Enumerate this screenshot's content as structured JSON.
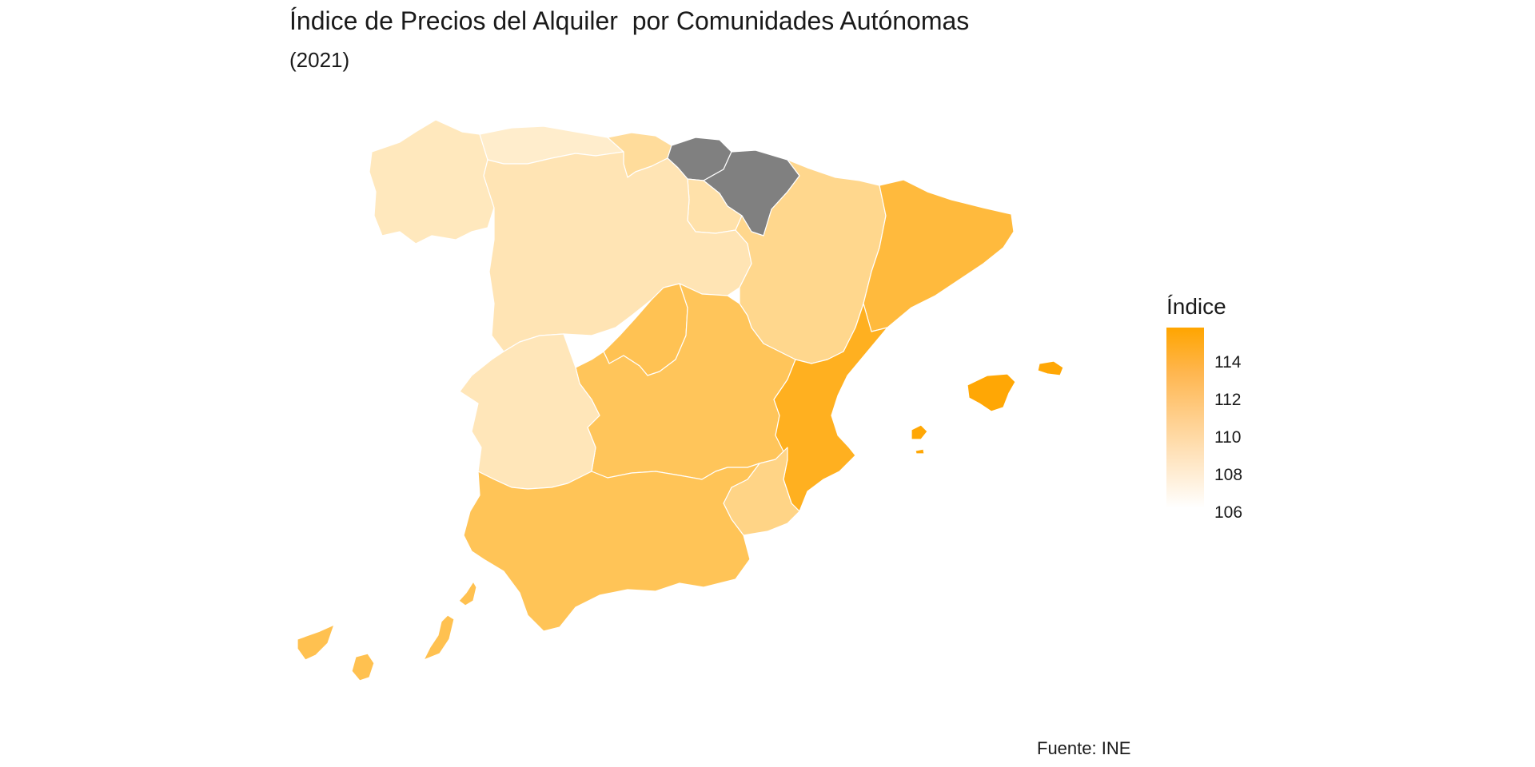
{
  "title": "Índice de Precios del Alquiler  por Comunidades Autónomas",
  "subtitle": "(2021)",
  "caption": "Fuente: INE",
  "legend": {
    "title": "Índice",
    "ticks": [
      "114",
      "112",
      "110",
      "108",
      "106"
    ],
    "low_color": "#ffffff",
    "high_color": "#ffa500",
    "na_color": "#808080"
  },
  "regions": [
    {
      "name": "Galicia",
      "value": 108.2
    },
    {
      "name": "Asturias",
      "value": 107.6
    },
    {
      "name": "Cantabria",
      "value": 109.6
    },
    {
      "name": "País Vasco",
      "value": null
    },
    {
      "name": "Navarra",
      "value": null
    },
    {
      "name": "La Rioja",
      "value": 109.0
    },
    {
      "name": "Castilla y León",
      "value": 108.6
    },
    {
      "name": "Aragón",
      "value": 110.2
    },
    {
      "name": "Cataluña",
      "value": 113.5
    },
    {
      "name": "Comunidad de Madrid",
      "value": 112.6
    },
    {
      "name": "Castilla-La Mancha",
      "value": 112.3
    },
    {
      "name": "Extremadura",
      "value": 108.4
    },
    {
      "name": "Comunitat Valenciana",
      "value": 114.7
    },
    {
      "name": "Región de Murcia",
      "value": 110.5
    },
    {
      "name": "Andalucía",
      "value": 112.4
    },
    {
      "name": "Illes Balears",
      "value": 115.8
    },
    {
      "name": "Canarias",
      "value": 112.7
    }
  ]
}
